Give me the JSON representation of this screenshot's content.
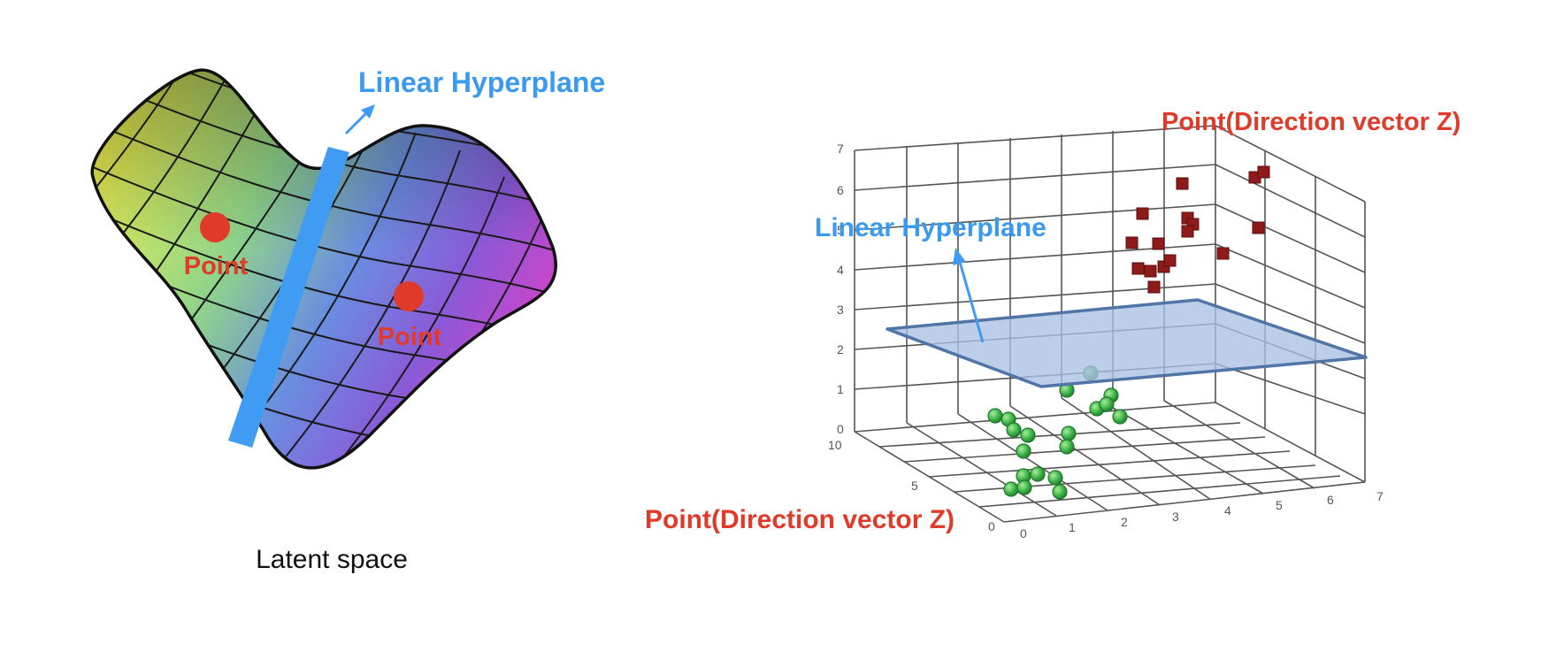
{
  "left_panel": {
    "hyperplane_label": "Linear Hyperplane",
    "point_labels": [
      "Point",
      "Point"
    ],
    "caption": "Latent space"
  },
  "right_panel": {
    "hyperplane_label": "Linear Hyperplane",
    "top_point_label": "Point(Direction vector Z)",
    "bottom_point_label": "Point(Direction vector Z)",
    "z_ticks": [
      "0",
      "1",
      "2",
      "3",
      "4",
      "5",
      "6",
      "7"
    ],
    "x_ticks": [
      "0",
      "1",
      "2",
      "3",
      "4",
      "5",
      "6",
      "7"
    ],
    "y_ticks": [
      "10",
      "5",
      "0"
    ]
  },
  "colors": {
    "label_blue": "#3a9af0",
    "label_red": "#e03a2a",
    "point_red": "#e03a2a",
    "hyperplane_blue": "#3f9cf2",
    "plane_fill": "#a9c0e3",
    "plane_edge": "#5275a8",
    "cube_red": "#8e1a1a",
    "sphere_green": "#3fb34a"
  }
}
